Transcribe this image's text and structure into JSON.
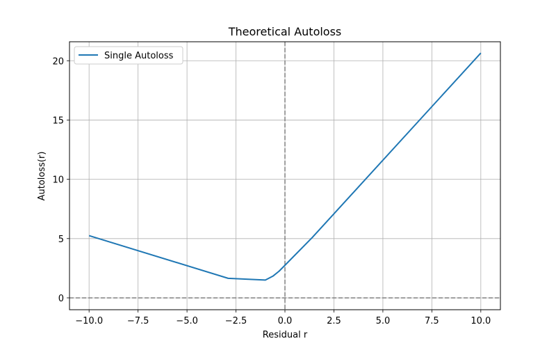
{
  "chart_data": {
    "type": "line",
    "title": "Theoretical Autoloss",
    "xlabel": "Residual r",
    "ylabel": "Autoloss(r)",
    "xlim": [
      -11.0,
      11.0
    ],
    "ylim": [
      -1.0,
      21.6
    ],
    "xticks": [
      -10.0,
      -7.5,
      -5.0,
      -2.5,
      0.0,
      2.5,
      5.0,
      7.5,
      10.0
    ],
    "xtick_labels": [
      "−10.0",
      "−7.5",
      "−5.0",
      "−2.5",
      "0.0",
      "2.5",
      "5.0",
      "7.5",
      "10.0"
    ],
    "yticks": [
      0,
      5,
      10,
      15,
      20
    ],
    "ytick_labels": [
      "0",
      "5",
      "10",
      "15",
      "20"
    ],
    "grid": true,
    "legend_position": "top-left",
    "reference_lines": {
      "x": 0,
      "y": 0
    },
    "series": [
      {
        "name": "Single Autoloss",
        "color": "#1f77b4",
        "x": [
          -10.0,
          -2.9,
          -1.0,
          -0.6,
          -0.3,
          0.0,
          1.4,
          10.0
        ],
        "y": [
          5.25,
          1.65,
          1.5,
          1.85,
          2.25,
          2.75,
          5.1,
          20.65
        ]
      }
    ]
  }
}
